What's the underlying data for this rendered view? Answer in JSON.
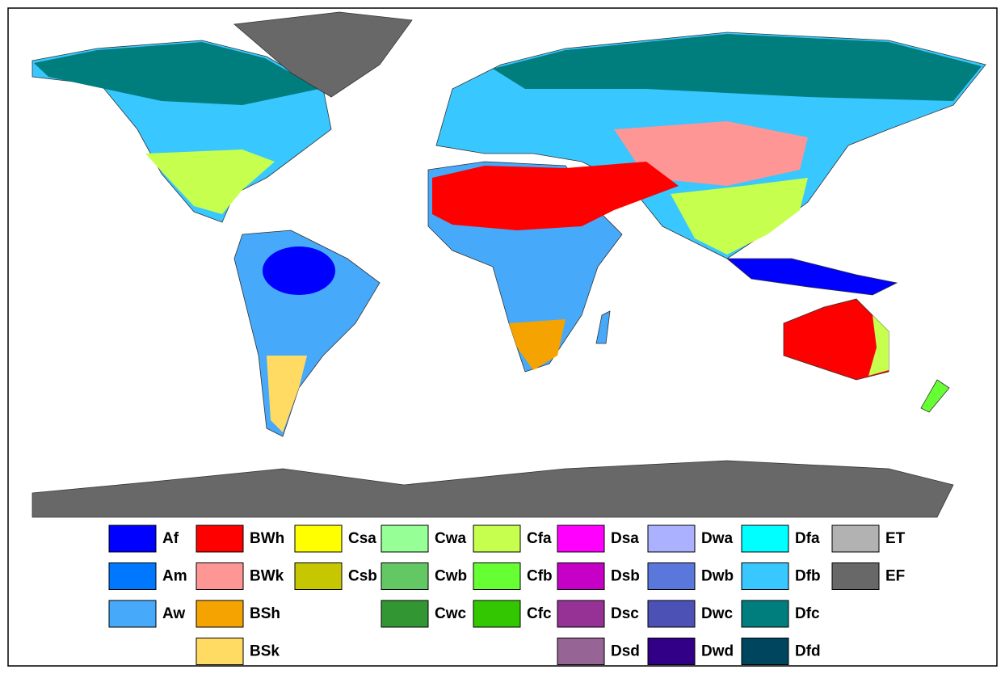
{
  "legend": [
    [
      {
        "name": "Af",
        "color": "#0000fe"
      },
      {
        "name": "Am",
        "color": "#0077ff"
      },
      {
        "name": "Aw",
        "color": "#46a9fa"
      }
    ],
    [
      {
        "name": "BWh",
        "color": "#fe0000"
      },
      {
        "name": "BWk",
        "color": "#fe9695"
      },
      {
        "name": "BSh",
        "color": "#f5a301"
      },
      {
        "name": "BSk",
        "color": "#ffdb63"
      }
    ],
    [
      {
        "name": "Csa",
        "color": "#ffff00"
      },
      {
        "name": "Csb",
        "color": "#c6c700"
      }
    ],
    [
      {
        "name": "Cwa",
        "color": "#96ff96"
      },
      {
        "name": "Cwb",
        "color": "#63c764"
      },
      {
        "name": "Cwc",
        "color": "#329633"
      }
    ],
    [
      {
        "name": "Cfa",
        "color": "#c6ff4e"
      },
      {
        "name": "Cfb",
        "color": "#66ff33"
      },
      {
        "name": "Cfc",
        "color": "#33c701"
      }
    ],
    [
      {
        "name": "Dsa",
        "color": "#ff00fe"
      },
      {
        "name": "Dsb",
        "color": "#c600c7"
      },
      {
        "name": "Dsc",
        "color": "#963295"
      },
      {
        "name": "Dsd",
        "color": "#966495"
      }
    ],
    [
      {
        "name": "Dwa",
        "color": "#abb1ff"
      },
      {
        "name": "Dwb",
        "color": "#5a77db"
      },
      {
        "name": "Dwc",
        "color": "#4c51b5"
      },
      {
        "name": "Dwd",
        "color": "#320087"
      }
    ],
    [
      {
        "name": "Dfa",
        "color": "#00ffff"
      },
      {
        "name": "Dfb",
        "color": "#38c7ff"
      },
      {
        "name": "Dfc",
        "color": "#007e7d"
      },
      {
        "name": "Dfd",
        "color": "#00455e"
      }
    ],
    [
      {
        "name": "ET",
        "color": "#b2b2b2"
      },
      {
        "name": "EF",
        "color": "#686868"
      }
    ]
  ]
}
